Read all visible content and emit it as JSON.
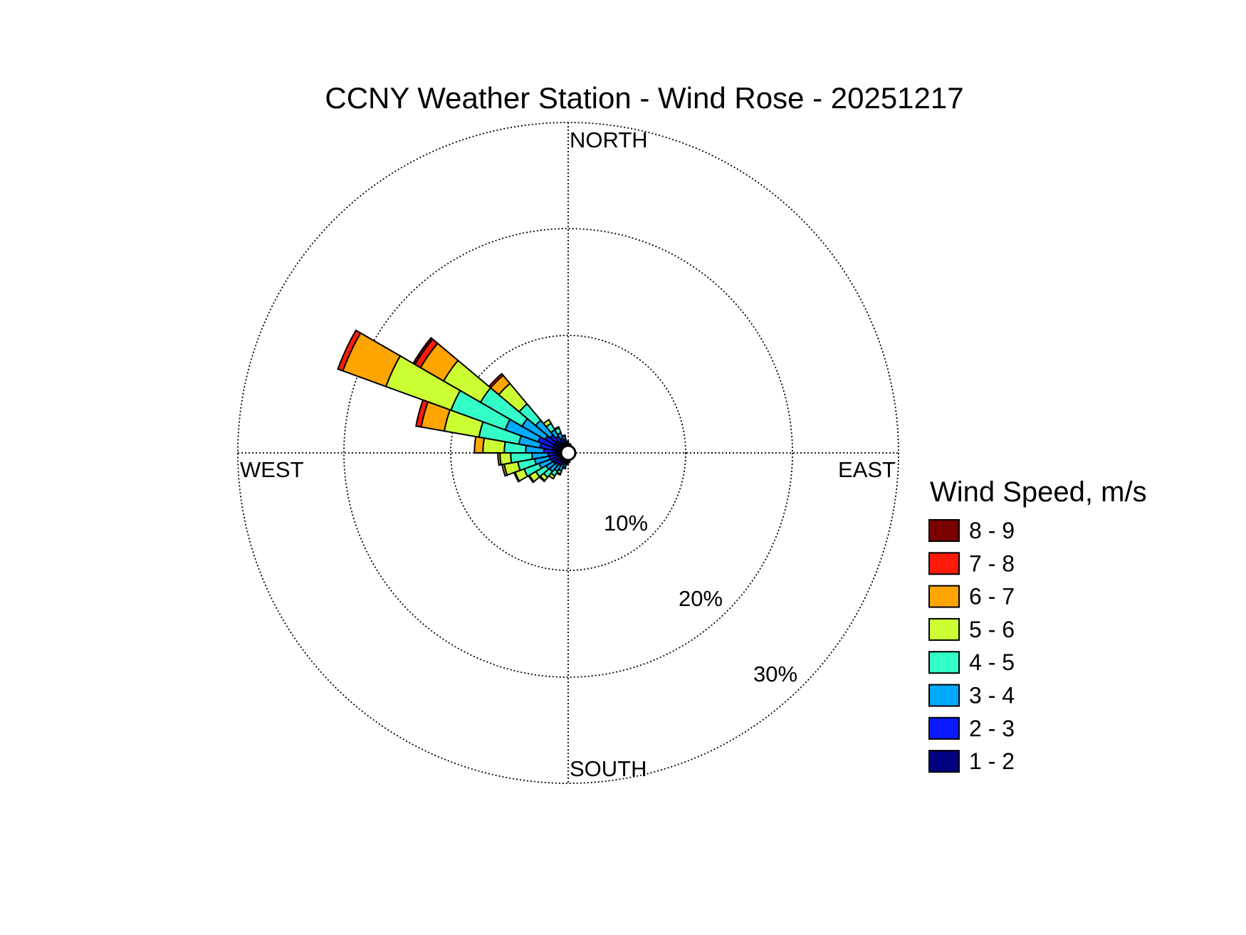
{
  "chart_data": {
    "type": "wind-rose",
    "title": "CCNY Weather Station - Wind Rose - 20251217",
    "direction_labels": {
      "north": "NORTH",
      "south": "SOUTH",
      "east": "EAST",
      "west": "WEST"
    },
    "radial_axis": {
      "unit": "%",
      "ticks": [
        10,
        20,
        30
      ],
      "tick_labels": [
        "10%",
        "20%",
        "30%"
      ],
      "max": 31
    },
    "grid": true,
    "legend": {
      "title": "Wind Speed, m/s",
      "placement": "right",
      "bins": [
        {
          "label": "8 - 9",
          "color": "#7a0000"
        },
        {
          "label": "7 - 8",
          "color": "#ff1a0a"
        },
        {
          "label": "6 - 7",
          "color": "#ffa500"
        },
        {
          "label": "5 - 6",
          "color": "#cbff33"
        },
        {
          "label": "4 - 5",
          "color": "#33ffc8"
        },
        {
          "label": "3 - 4",
          "color": "#00aaff"
        },
        {
          "label": "2 - 3",
          "color": "#0a1aff"
        },
        {
          "label": "1 - 2",
          "color": "#000080"
        }
      ]
    },
    "speed_bins_low_to_high": [
      "1 - 2",
      "2 - 3",
      "3 - 4",
      "4 - 5",
      "5 - 6",
      "6 - 7",
      "7 - 8",
      "8 - 9"
    ],
    "sector_width_deg": 10,
    "calm_radius_pct": 0.7,
    "sectors": [
      {
        "direction_deg": 295,
        "cumulative_pct": [
          1.5,
          3.0,
          6.3,
          11.7,
          18.2,
          22.5,
          23.0,
          23.0
        ]
      },
      {
        "direction_deg": 305,
        "cumulative_pct": [
          1.5,
          2.5,
          5.0,
          9.5,
          13.5,
          16.0,
          16.6,
          16.8
        ]
      },
      {
        "direction_deg": 285,
        "cumulative_pct": [
          1.5,
          2.7,
          4.7,
          8.5,
          11.8,
          14.0,
          14.5,
          14.5
        ]
      },
      {
        "direction_deg": 315,
        "cumulative_pct": [
          1.5,
          2.2,
          4.0,
          6.0,
          8.5,
          9.5,
          9.7,
          9.7
        ]
      },
      {
        "direction_deg": 275,
        "cumulative_pct": [
          1.3,
          2.3,
          4.0,
          6.0,
          8.0,
          8.8,
          8.8,
          8.8
        ]
      },
      {
        "direction_deg": 265,
        "cumulative_pct": [
          1.1,
          1.9,
          3.4,
          5.4,
          6.4,
          6.6,
          6.6,
          6.6
        ]
      },
      {
        "direction_deg": 255,
        "cumulative_pct": [
          1.0,
          1.8,
          3.2,
          4.8,
          6.1,
          6.3,
          6.3,
          6.3
        ]
      },
      {
        "direction_deg": 245,
        "cumulative_pct": [
          0.9,
          1.7,
          2.9,
          4.4,
          5.3,
          5.4,
          5.4,
          5.4
        ]
      },
      {
        "direction_deg": 235,
        "cumulative_pct": [
          0.9,
          1.6,
          2.4,
          3.5,
          4.2,
          4.3,
          4.3,
          4.3
        ]
      },
      {
        "direction_deg": 225,
        "cumulative_pct": [
          0.8,
          1.5,
          2.3,
          3.0,
          3.4,
          3.5,
          3.5,
          3.5
        ]
      },
      {
        "direction_deg": 215,
        "cumulative_pct": [
          0.8,
          1.4,
          2.0,
          2.5,
          2.8,
          2.8,
          2.8,
          2.8
        ]
      },
      {
        "direction_deg": 205,
        "cumulative_pct": [
          0.8,
          1.2,
          1.8,
          2.1,
          2.2,
          2.2,
          2.2,
          2.2
        ]
      },
      {
        "direction_deg": 195,
        "cumulative_pct": [
          0.8,
          1.1,
          1.4,
          1.5,
          1.5,
          1.5,
          1.5,
          1.5
        ]
      },
      {
        "direction_deg": 185,
        "cumulative_pct": [
          0.8,
          1.0,
          1.1,
          1.1,
          1.1,
          1.1,
          1.1,
          1.1
        ]
      },
      {
        "direction_deg": 175,
        "cumulative_pct": [
          0.8,
          0.9,
          0.9,
          0.9,
          0.9,
          0.9,
          0.9,
          0.9
        ]
      },
      {
        "direction_deg": 325,
        "cumulative_pct": [
          1.2,
          1.8,
          2.5,
          3.2,
          3.6,
          3.6,
          3.6,
          3.6
        ]
      },
      {
        "direction_deg": 335,
        "cumulative_pct": [
          1.0,
          1.5,
          2.0,
          2.5,
          2.6,
          2.6,
          2.6,
          2.6
        ]
      },
      {
        "direction_deg": 345,
        "cumulative_pct": [
          0.9,
          1.3,
          1.6,
          1.7,
          1.7,
          1.7,
          1.7,
          1.7
        ]
      },
      {
        "direction_deg": 355,
        "cumulative_pct": [
          0.8,
          1.0,
          1.1,
          1.1,
          1.1,
          1.1,
          1.1,
          1.1
        ]
      },
      {
        "direction_deg": 5,
        "cumulative_pct": [
          0.8,
          0.9,
          0.9,
          0.9,
          0.9,
          0.9,
          0.9,
          0.9
        ]
      },
      {
        "direction_deg": 15,
        "cumulative_pct": [
          0.8,
          0.8,
          0.8,
          0.8,
          0.8,
          0.8,
          0.8,
          0.8
        ]
      }
    ]
  }
}
